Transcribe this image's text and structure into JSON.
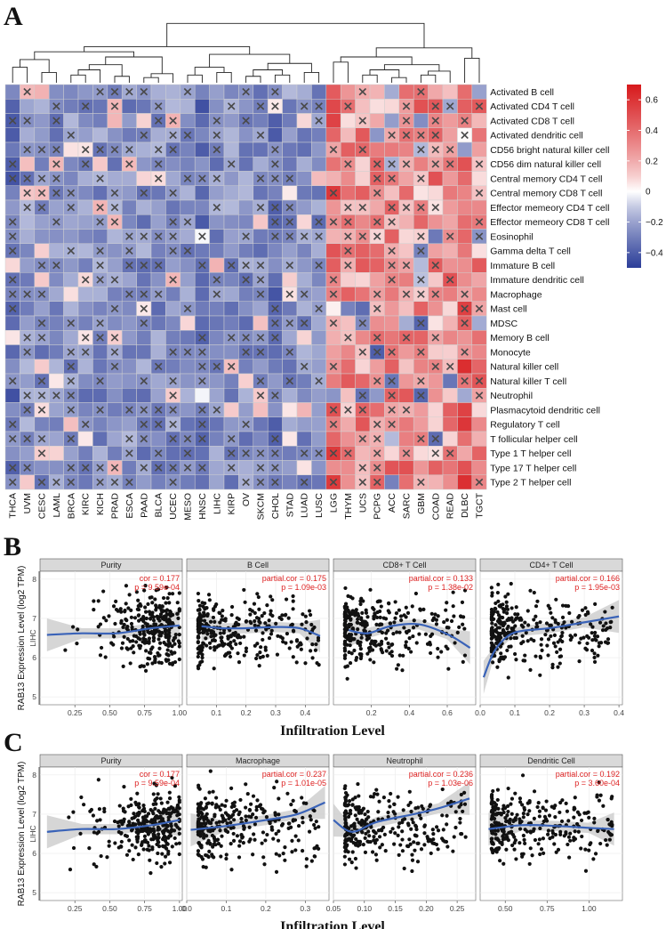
{
  "panels": {
    "a": "A",
    "b": "B",
    "c": "C"
  },
  "colors": {
    "high": "#d7191c",
    "mid": "#ffffff",
    "low": "#2c3e99",
    "line": "#3a63b8",
    "band": "#c8c8c8",
    "strip": "#d9d9d9",
    "ann": "#d22222"
  },
  "chart_data": [
    {
      "type": "heatmap",
      "title": "",
      "rows": [
        "Activated B cell",
        "Activated CD4 T cell",
        "Activated CD8 T cell",
        "Activated dendritic cell",
        "CD56 bright natural killer cell",
        "CD56 dim natural killer cell",
        "Central memory CD4 T cell",
        "Central memory CD8 T cell",
        "Effector memeory CD4 T cell",
        "Effector memeory CD8 T cell",
        "Eosinophil",
        "Gamma delta T cell",
        "Immature  B cell",
        "Immature dendritic cell",
        "Macrophage",
        "Mast cell",
        "MDSC",
        "Memory B cell",
        "Monocyte",
        "Natural killer cell",
        "Natural killer T cell",
        "Neutrophil",
        "Plasmacytoid dendritic cell",
        "Regulatory T cell",
        "T follicular helper cell",
        "Type 1 T helper cell",
        "Type 17 T helper cell",
        "Type 2 T helper cell"
      ],
      "columns": [
        "THCA",
        "UVM",
        "CESC",
        "LAML",
        "BRCA",
        "KIRC",
        "KICH",
        "PRAD",
        "ESCA",
        "PAAD",
        "BLCA",
        "UCEC",
        "MESO",
        "HNSC",
        "LIHC",
        "KIRP",
        "OV",
        "SKCM",
        "CHOL",
        "STAD",
        "LUAD",
        "LUSC",
        "LGG",
        "THYM",
        "UCS",
        "PCPG",
        "ACC",
        "SARC",
        "GBM",
        "COAD",
        "READ",
        "DLBC",
        "TGCT"
      ],
      "values_note": "correlation coefficient estimated from colour; X marks non-significant cells",
      "colorbar": {
        "min": -0.5,
        "max": 0.7,
        "ticks": [
          0.6,
          0.4,
          0.2,
          0,
          -0.2,
          -0.4
        ],
        "tick_labels": [
          "0.6",
          "0.4",
          "0.2",
          "0",
          "−0.2",
          "−0.4"
        ]
      }
    },
    {
      "type": "scatter",
      "group": "B",
      "ylabel": "RAB13 Expression Level (log2 TPM)",
      "xlabel": "Infiltration Level",
      "row_label": "LIHC",
      "ylim": [
        4.8,
        8.2
      ],
      "yticks": [
        5,
        6,
        7,
        8
      ],
      "facets": [
        {
          "title": "Purity",
          "stat": "cor = 0.177",
          "p": "p = 9.59e-04",
          "xlim": [
            0.0,
            1.02
          ],
          "xticks": [
            0.25,
            0.5,
            0.75,
            1.0
          ],
          "xtick_labels": [
            "0.25",
            "0.50",
            "0.75",
            "1.00"
          ],
          "trend": [
            [
              0.05,
              6.58
            ],
            [
              0.3,
              6.62
            ],
            [
              0.55,
              6.62
            ],
            [
              0.8,
              6.75
            ],
            [
              1.0,
              6.82
            ]
          ]
        },
        {
          "title": "B Cell",
          "stat": "partial.cor = 0.175",
          "p": "p = 1.09e-03",
          "xlim": [
            0.0,
            0.48
          ],
          "xticks": [
            0.1,
            0.2,
            0.3,
            0.4
          ],
          "xtick_labels": [
            "0.1",
            "0.2",
            "0.3",
            "0.4"
          ],
          "trend": [
            [
              0.05,
              6.8
            ],
            [
              0.12,
              6.75
            ],
            [
              0.2,
              6.75
            ],
            [
              0.3,
              6.78
            ],
            [
              0.38,
              6.75
            ],
            [
              0.45,
              6.55
            ]
          ]
        },
        {
          "title": "CD8+ T Cell",
          "stat": "partial.cor = 0.133",
          "p": "p = 1.38e-02",
          "xlim": [
            0.0,
            0.75
          ],
          "xticks": [
            0.2,
            0.4,
            0.6
          ],
          "xtick_labels": [
            "0.2",
            "0.4",
            "0.6"
          ],
          "trend": [
            [
              0.08,
              6.7
            ],
            [
              0.18,
              6.62
            ],
            [
              0.3,
              6.8
            ],
            [
              0.45,
              6.85
            ],
            [
              0.6,
              6.6
            ],
            [
              0.72,
              6.25
            ]
          ]
        },
        {
          "title": "CD4+ T Cell",
          "stat": "partial.cor = 0.166",
          "p": "p = 1.95e-03",
          "xlim": [
            0.0,
            0.41
          ],
          "xticks": [
            0.0,
            0.1,
            0.2,
            0.3,
            0.4
          ],
          "xtick_labels": [
            "0.0",
            "0.1",
            "0.2",
            "0.3",
            "0.4"
          ],
          "trend": [
            [
              0.01,
              5.5
            ],
            [
              0.04,
              6.15
            ],
            [
              0.08,
              6.55
            ],
            [
              0.12,
              6.68
            ],
            [
              0.2,
              6.75
            ],
            [
              0.3,
              6.9
            ],
            [
              0.4,
              7.05
            ]
          ]
        }
      ]
    },
    {
      "type": "scatter",
      "group": "C",
      "ylabel": "RAB13 Expression Level (log2 TPM)",
      "xlabel": "Infiltration Level",
      "row_label": "LIHC",
      "ylim": [
        4.8,
        8.2
      ],
      "yticks": [
        5,
        6,
        7,
        8
      ],
      "facets": [
        {
          "title": "Purity",
          "stat": "cor = 0.177",
          "p": "p = 9.59e-04",
          "xlim": [
            0.0,
            1.02
          ],
          "xticks": [
            0.25,
            0.5,
            0.75,
            1.0
          ],
          "xtick_labels": [
            "0.25",
            "0.50",
            "0.75",
            "1.00"
          ],
          "trend": [
            [
              0.05,
              6.55
            ],
            [
              0.3,
              6.62
            ],
            [
              0.55,
              6.62
            ],
            [
              0.8,
              6.72
            ],
            [
              1.0,
              6.85
            ]
          ]
        },
        {
          "title": "Macrophage",
          "stat": "partial.cor = 0.237",
          "p": "p = 1.01e-05",
          "xlim": [
            0.0,
            0.36
          ],
          "xticks": [
            0.0,
            0.1,
            0.2,
            0.3
          ],
          "xtick_labels": [
            "0.0",
            "0.1",
            "0.2",
            "0.3"
          ],
          "trend": [
            [
              0.01,
              6.6
            ],
            [
              0.1,
              6.7
            ],
            [
              0.2,
              6.85
            ],
            [
              0.28,
              7.0
            ],
            [
              0.35,
              7.3
            ]
          ]
        },
        {
          "title": "Neutrophil",
          "stat": "partial.cor = 0.236",
          "p": "p = 1.03e-06",
          "xlim": [
            0.05,
            0.28
          ],
          "xticks": [
            0.05,
            0.1,
            0.15,
            0.2,
            0.25
          ],
          "xtick_labels": [
            "0.05",
            "0.10",
            "0.15",
            "0.20",
            "0.25"
          ],
          "trend": [
            [
              0.05,
              6.85
            ],
            [
              0.08,
              6.55
            ],
            [
              0.12,
              6.8
            ],
            [
              0.18,
              7.0
            ],
            [
              0.22,
              7.15
            ],
            [
              0.27,
              7.4
            ]
          ]
        },
        {
          "title": "Dendritic Cell",
          "stat": "partial.cor = 0.192",
          "p": "p = 3.60e-04",
          "xlim": [
            0.35,
            1.2
          ],
          "xticks": [
            0.5,
            0.75,
            1.0
          ],
          "xtick_labels": [
            "0.50",
            "0.75",
            "1.00"
          ],
          "trend": [
            [
              0.4,
              6.62
            ],
            [
              0.6,
              6.72
            ],
            [
              0.8,
              6.7
            ],
            [
              1.0,
              6.65
            ],
            [
              1.15,
              6.62
            ]
          ]
        }
      ]
    }
  ]
}
